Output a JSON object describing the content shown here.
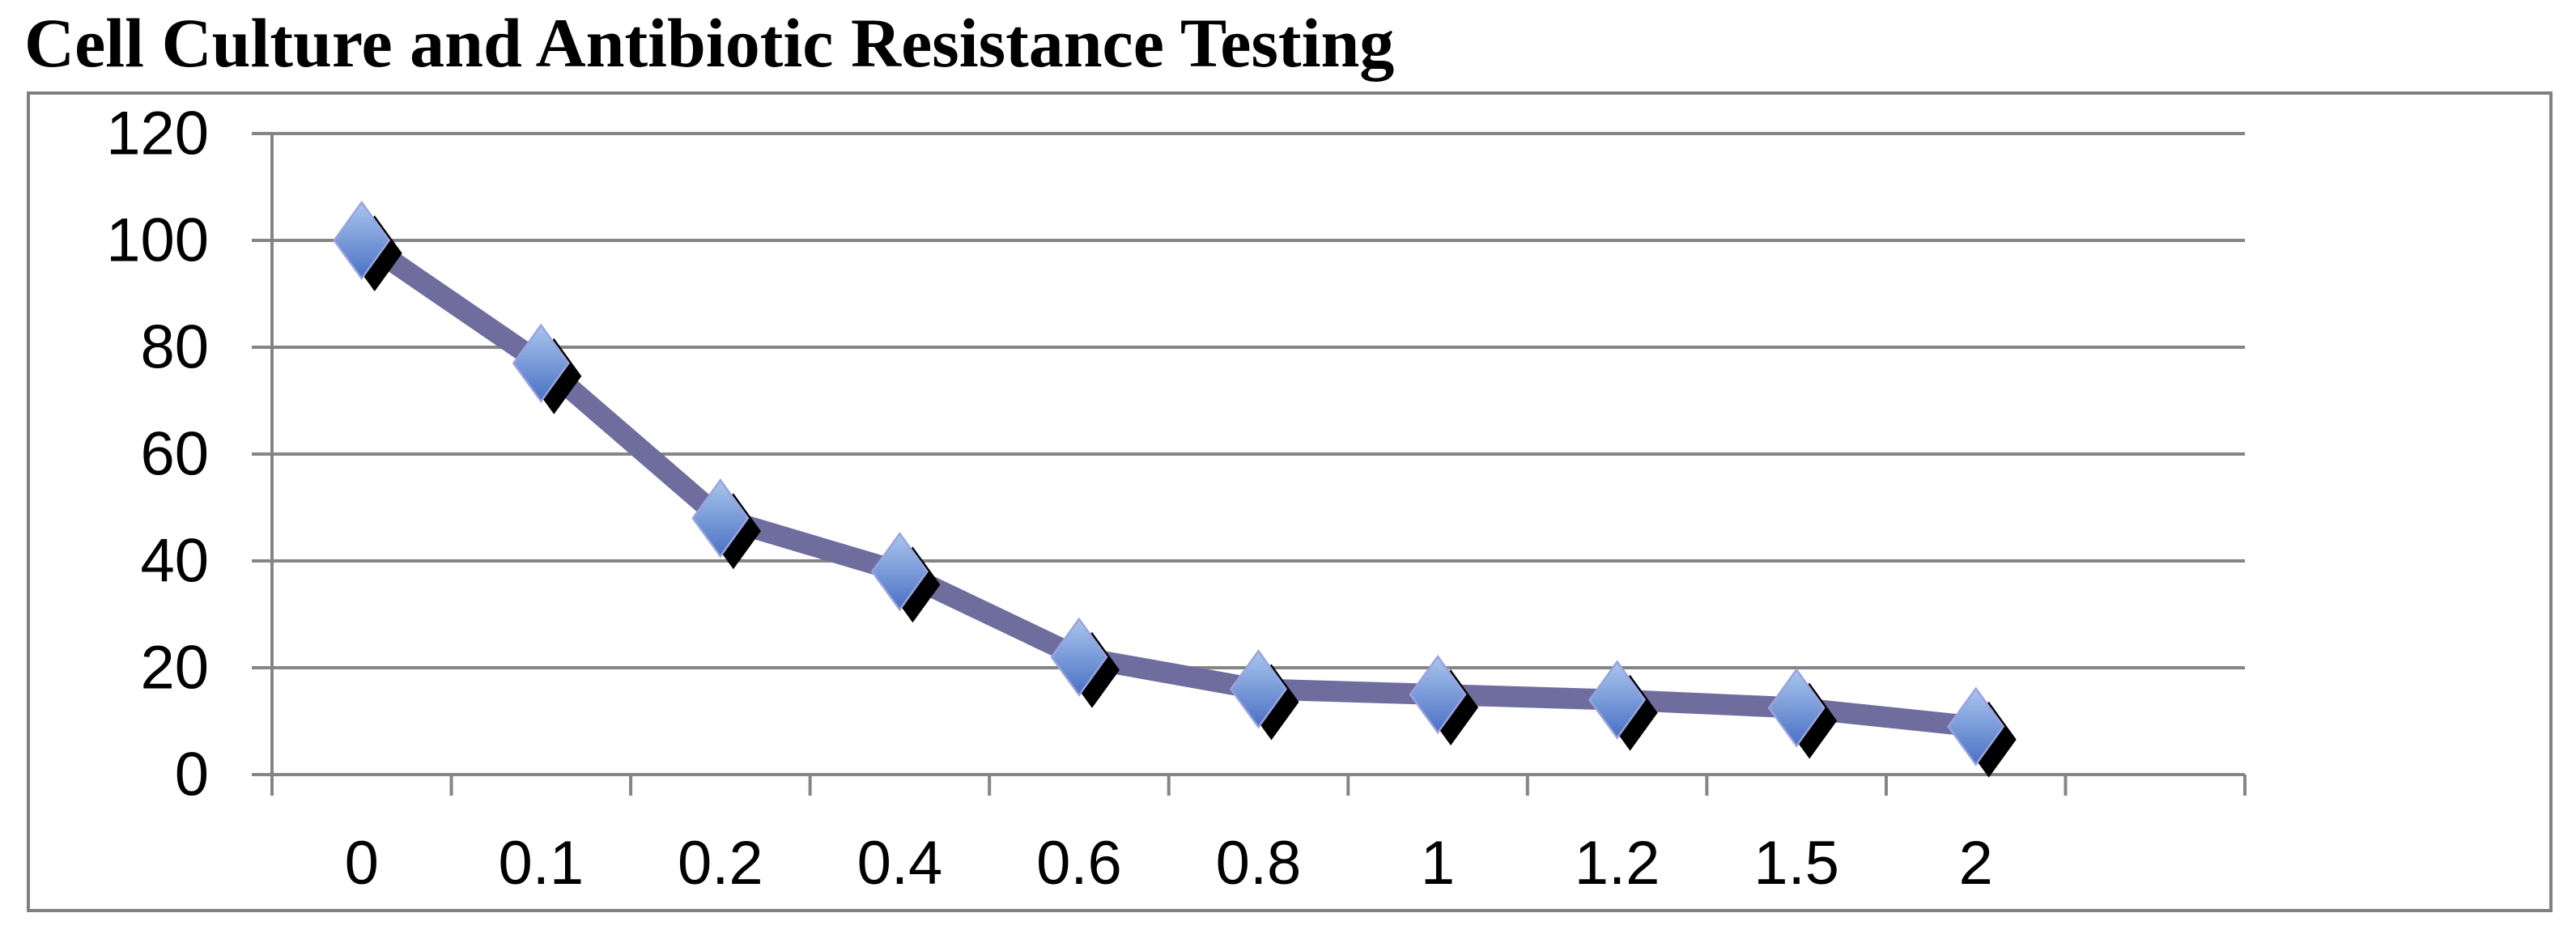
{
  "title": "Cell Culture and Antibiotic Resistance Testing",
  "colors": {
    "background": "#ffffff",
    "text": "#000000",
    "chart_border": "#808080",
    "gridline": "#858585",
    "axis": "#858585",
    "series_line": "#6e6d9e",
    "marker_fill_top": "#a9c6ee",
    "marker_fill_bottom": "#4a70c4",
    "marker_border": "#9aa3dd",
    "marker_shadow": "#000000"
  },
  "chart_data": {
    "type": "line",
    "title": "Cell Culture and Antibiotic Resistance Testing",
    "categories": [
      "0",
      "0.1",
      "0.2",
      "0.4",
      "0.6",
      "0.8",
      "1",
      "1.2",
      "1.5",
      "2"
    ],
    "values": [
      100,
      77,
      48,
      38,
      22,
      16,
      15,
      14,
      12.5,
      9
    ],
    "xlabel": "",
    "ylabel": "",
    "ylim": [
      0,
      120
    ],
    "yticks": [
      0,
      20,
      40,
      60,
      80,
      100,
      120
    ],
    "grid": "horizontal",
    "legend": "none",
    "marker": "diamond-3d-shadow",
    "trailing_empty_categories": 1
  }
}
